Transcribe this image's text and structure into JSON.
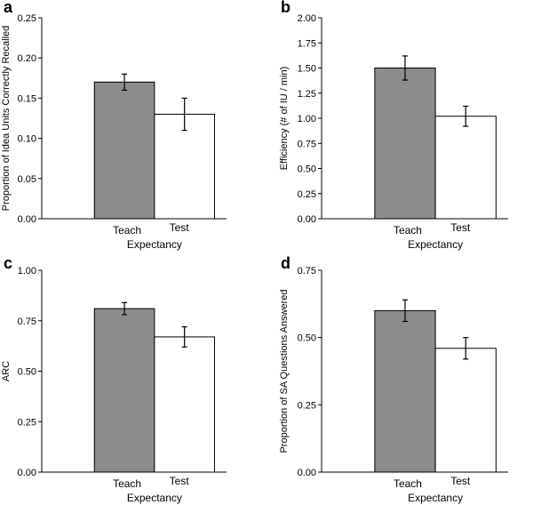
{
  "colors": {
    "teach_fill": "#8c8c8c",
    "test_fill": "#ffffff",
    "stroke": "#000000"
  },
  "chart_data": [
    {
      "type": "bar",
      "panel": "a",
      "categories": [
        "Teach",
        "Test"
      ],
      "values": [
        0.17,
        0.13
      ],
      "errors": [
        0.01,
        0.02
      ],
      "xlabel": "Expectancy",
      "ylabel": "Proportion of Idea Units Correctly Recalled",
      "ylim": [
        0,
        0.25
      ],
      "yticks": [
        "0.00",
        "0.05",
        "0.10",
        "0.15",
        "0.20",
        "0.25"
      ]
    },
    {
      "type": "bar",
      "panel": "b",
      "categories": [
        "Teach",
        "Test"
      ],
      "values": [
        1.5,
        1.02
      ],
      "errors": [
        0.12,
        0.1
      ],
      "xlabel": "Expectancy",
      "ylabel": "Efficiency (# of IU / min)",
      "ylim": [
        0,
        2.0
      ],
      "yticks": [
        "0.00",
        "0.25",
        "0.50",
        "0.75",
        "1.00",
        "1.25",
        "1.50",
        "1.75",
        "2.00"
      ]
    },
    {
      "type": "bar",
      "panel": "c",
      "categories": [
        "Teach",
        "Test"
      ],
      "values": [
        0.81,
        0.67
      ],
      "errors": [
        0.03,
        0.05
      ],
      "xlabel": "Expectancy",
      "ylabel": "ARC",
      "ylim": [
        0,
        1.0
      ],
      "yticks": [
        "0.00",
        "0.25",
        "0.50",
        "0.75",
        "1.00"
      ]
    },
    {
      "type": "bar",
      "panel": "d",
      "categories": [
        "Teach",
        "Test"
      ],
      "values": [
        0.6,
        0.46
      ],
      "errors": [
        0.04,
        0.04
      ],
      "xlabel": "Expectancy",
      "ylabel": "Proportion of SA Questions Answered",
      "ylim": [
        0,
        0.75
      ],
      "yticks": [
        "0.00",
        "0.25",
        "0.50",
        "0.75"
      ]
    }
  ]
}
